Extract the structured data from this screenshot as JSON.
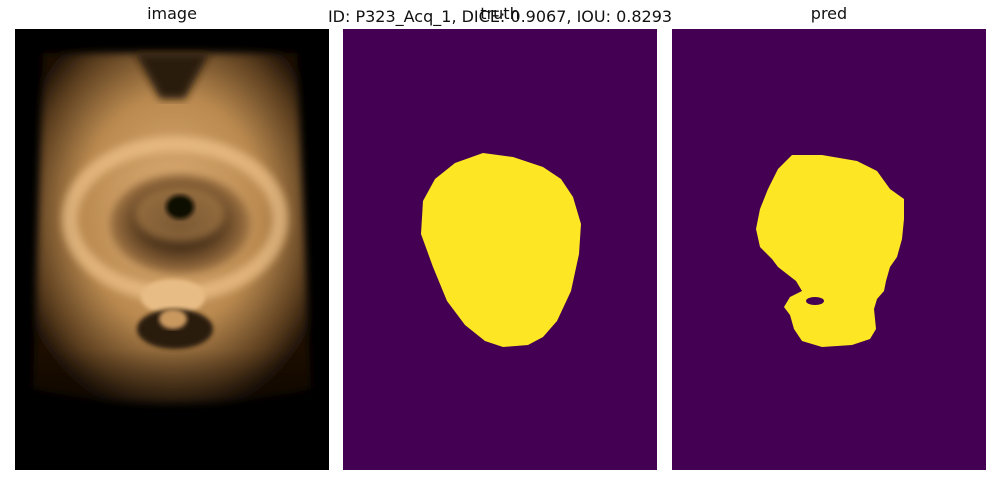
{
  "figure": {
    "suptitle": "ID: P323_Acq_1, DICE: 0.9067, IOU: 0.8293",
    "panels": [
      {
        "title": "image"
      },
      {
        "title": "truth"
      },
      {
        "title": "pred"
      }
    ]
  },
  "colors": {
    "background_mask": "#440154",
    "foreground_mask": "#fde725",
    "ultrasound_tone": "#d8a86a"
  }
}
